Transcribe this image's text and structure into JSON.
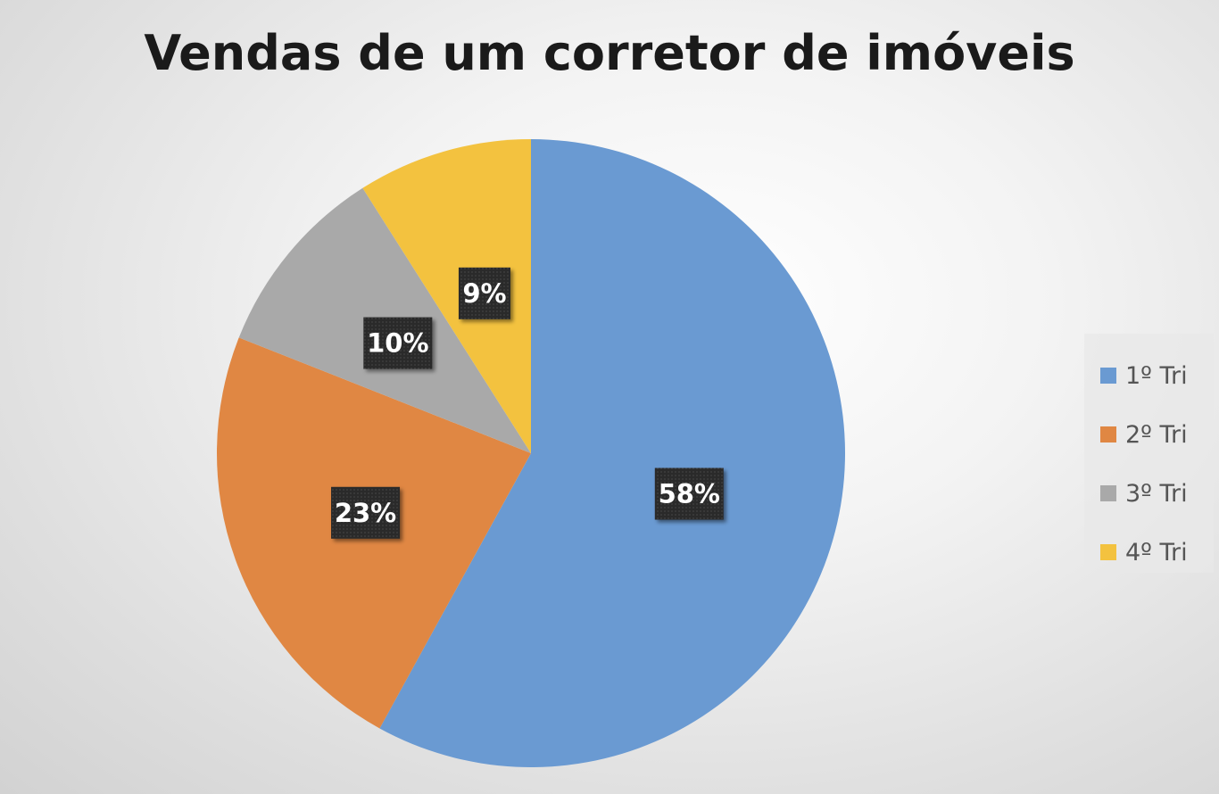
{
  "chart_data": {
    "type": "pie",
    "title": "Vendas de um corretor de imóveis",
    "categories": [
      "1º Tri",
      "2º Tri",
      "3º Tri",
      "4º Tri"
    ],
    "values": [
      58,
      23,
      10,
      9
    ],
    "data_labels": [
      "58%",
      "23%",
      "10%",
      "9%"
    ],
    "colors": [
      "#6a9ad2",
      "#e08743",
      "#a9a9a9",
      "#f3c23f"
    ],
    "legend_position": "right",
    "start_angle": "top, clockwise"
  }
}
